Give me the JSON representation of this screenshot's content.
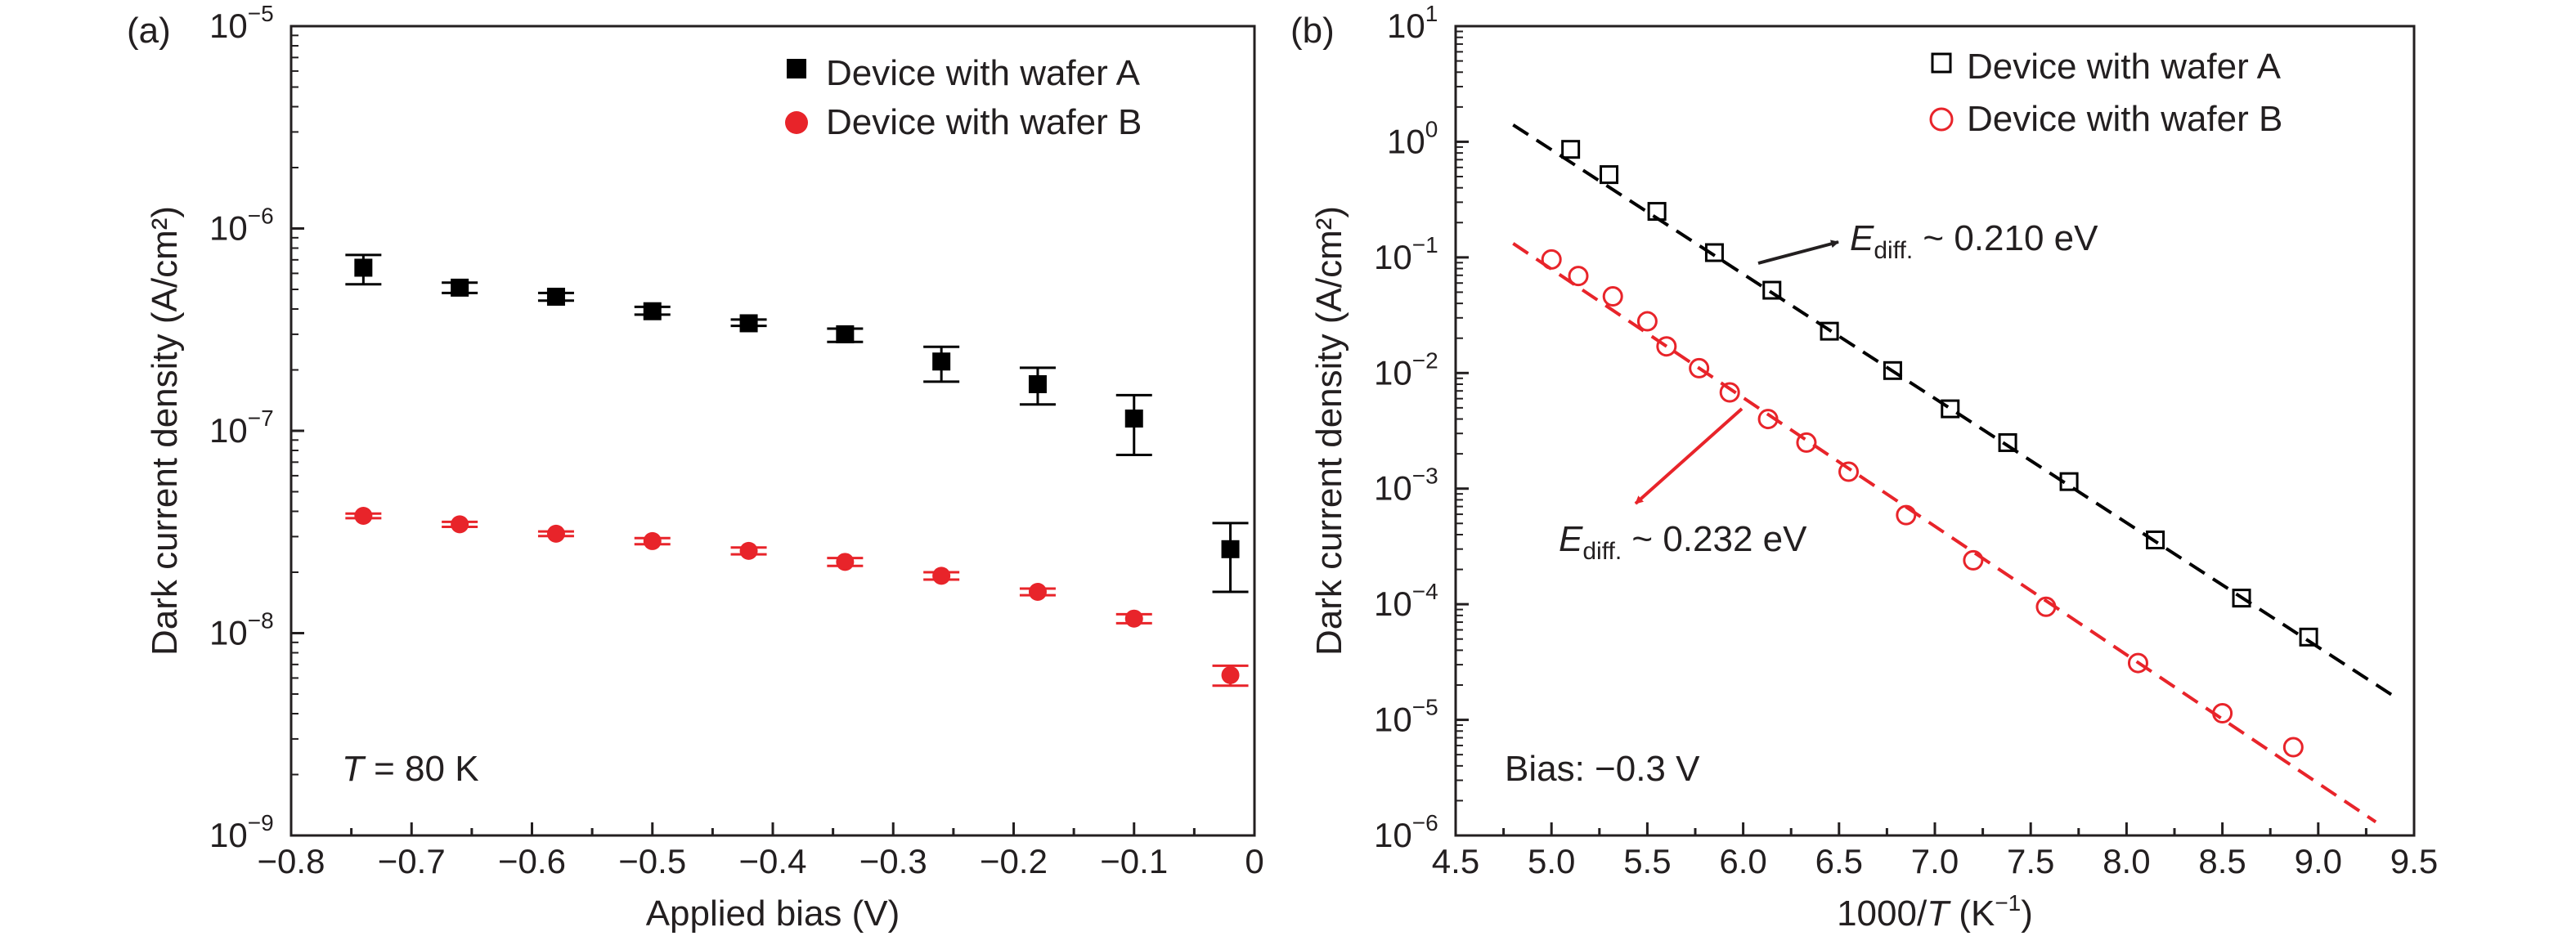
{
  "chart_data": [
    {
      "panel_label": "(a)",
      "type": "scatter",
      "xlabel": "Applied bias (V)",
      "ylabel": "Dark current density (A/cm²)",
      "xlim": [
        -0.8,
        0
      ],
      "ylim": [
        1e-09,
        1e-05
      ],
      "yscale": "log",
      "x_ticks": [
        "−0.8",
        "−0.7",
        "−0.6",
        "−0.5",
        "−0.4",
        "−0.3",
        "−0.2",
        "−0.1",
        "0"
      ],
      "y_ticks": [
        {
          "base": "10",
          "exp": "−9"
        },
        {
          "base": "10",
          "exp": "−8"
        },
        {
          "base": "10",
          "exp": "−7"
        },
        {
          "base": "10",
          "exp": "−6"
        },
        {
          "base": "10",
          "exp": "−5"
        }
      ],
      "legend_position": "top-right",
      "annotation": {
        "italic": "T",
        "text": " = 80 K"
      },
      "series": [
        {
          "name": "Device with wafer A",
          "marker": "filled-square",
          "color": "#000000",
          "x": [
            -0.74,
            -0.66,
            -0.58,
            -0.5,
            -0.42,
            -0.34,
            -0.26,
            -0.18,
            -0.1,
            -0.02
          ],
          "y": [
            6.4e-07,
            5.1e-07,
            4.6e-07,
            3.9e-07,
            3.4e-07,
            3e-07,
            2.2e-07,
            1.7e-07,
            1.15e-07,
            2.6e-08
          ],
          "y_err_low": [
            5.3e-07,
            4.8e-07,
            4.4e-07,
            3.75e-07,
            3.3e-07,
            2.75e-07,
            1.75e-07,
            1.35e-07,
            7.6e-08,
            1.6e-08
          ],
          "y_err_high": [
            7.4e-07,
            5.4e-07,
            4.8e-07,
            4.1e-07,
            3.55e-07,
            3.2e-07,
            2.6e-07,
            2.05e-07,
            1.5e-07,
            3.5e-08
          ]
        },
        {
          "name": "Device with wafer B",
          "marker": "filled-circle",
          "color": "#e8242a",
          "x": [
            -0.74,
            -0.66,
            -0.58,
            -0.5,
            -0.42,
            -0.34,
            -0.26,
            -0.18,
            -0.1,
            -0.02
          ],
          "y": [
            3.8e-08,
            3.45e-08,
            3.1e-08,
            2.85e-08,
            2.55e-08,
            2.25e-08,
            1.92e-08,
            1.6e-08,
            1.18e-08,
            6.2e-09
          ],
          "y_err_low": [
            3.7e-08,
            3.35e-08,
            3.02e-08,
            2.75e-08,
            2.45e-08,
            2.15e-08,
            1.84e-08,
            1.54e-08,
            1.12e-08,
            5.5e-09
          ],
          "y_err_high": [
            3.9e-08,
            3.55e-08,
            3.18e-08,
            2.95e-08,
            2.65e-08,
            2.35e-08,
            2e-08,
            1.66e-08,
            1.24e-08,
            6.9e-09
          ]
        }
      ]
    },
    {
      "panel_label": "(b)",
      "type": "scatter",
      "xlabel": {
        "pre": "1000/",
        "italic": "T",
        "post": " (K",
        "sup": "−1",
        "end": ")"
      },
      "ylabel": "Dark current density (A/cm²)",
      "xlim": [
        4.5,
        9.5
      ],
      "ylim": [
        1e-06,
        10
      ],
      "yscale": "log",
      "x_ticks": [
        "4.5",
        "5.0",
        "5.5",
        "6.0",
        "6.5",
        "7.0",
        "7.5",
        "8.0",
        "8.5",
        "9.0",
        "9.5"
      ],
      "y_ticks": [
        {
          "base": "10",
          "exp": "−6"
        },
        {
          "base": "10",
          "exp": "−5"
        },
        {
          "base": "10",
          "exp": "−4"
        },
        {
          "base": "10",
          "exp": "−3"
        },
        {
          "base": "10",
          "exp": "−2"
        },
        {
          "base": "10",
          "exp": "−1"
        },
        {
          "base": "10",
          "exp": "0"
        },
        {
          "base": "10",
          "exp": "1"
        }
      ],
      "legend_position": "top-right",
      "annotation": "Bias: −0.3 V",
      "fit_annotations": [
        {
          "symbol": "E",
          "subscript": "diff.",
          "text": " ~ 0.210 eV"
        },
        {
          "symbol": "E",
          "subscript": "diff.",
          "text": " ~ 0.232 eV"
        }
      ],
      "series": [
        {
          "name": "Device with wafer A",
          "marker": "open-square",
          "color": "#000000",
          "x": [
            5.1,
            5.3,
            5.55,
            5.85,
            6.15,
            6.45,
            6.78,
            7.08,
            7.38,
            7.7,
            8.15,
            8.6,
            8.95
          ],
          "y": [
            0.86,
            0.52,
            0.25,
            0.11,
            0.052,
            0.023,
            0.0105,
            0.0049,
            0.0025,
            0.00115,
            0.00036,
            0.000113,
            5.2e-05
          ],
          "fit": {
            "x": [
              4.8,
              9.4
            ],
            "y": [
              1.4,
              1.58e-05
            ]
          }
        },
        {
          "name": "Device with wafer B",
          "marker": "open-circle",
          "color": "#e8242a",
          "x": [
            5.0,
            5.14,
            5.32,
            5.5,
            5.6,
            5.77,
            5.93,
            6.13,
            6.33,
            6.55,
            6.85,
            7.2,
            7.58,
            8.06,
            8.5,
            8.87
          ],
          "y": [
            0.096,
            0.069,
            0.046,
            0.028,
            0.017,
            0.011,
            0.0068,
            0.004,
            0.0025,
            0.0014,
            0.00059,
            0.00024,
            9.5e-05,
            3.1e-05,
            1.14e-05,
            5.8e-06
          ],
          "fit": {
            "x": [
              4.8,
              9.3
            ],
            "y": [
              0.132,
              1.31e-06
            ]
          }
        }
      ]
    }
  ]
}
